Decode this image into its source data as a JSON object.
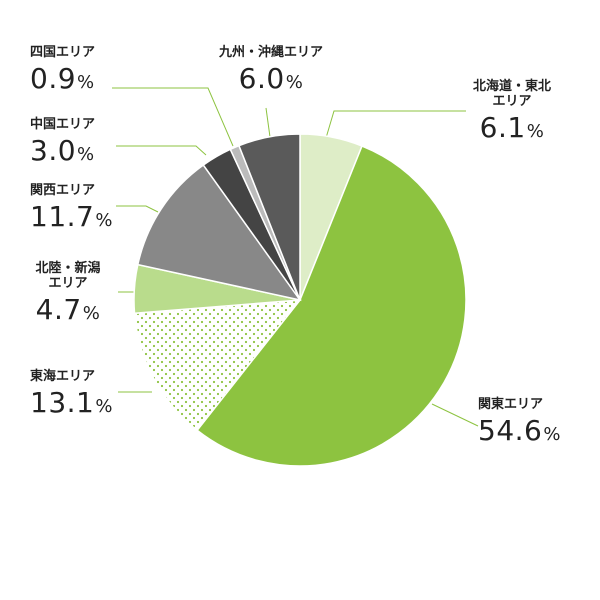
{
  "chart_data": {
    "type": "pie",
    "unit": "%",
    "start": "top",
    "direction": "clockwise",
    "slices": [
      {
        "name": "北海道・東北",
        "name_line2": "エリア",
        "value": 6.1,
        "value_label": "6.1",
        "color": "#deedc7",
        "pattern": "solid"
      },
      {
        "name": "関東エリア",
        "value": 54.6,
        "value_label": "54.6",
        "color": "#8dc340",
        "pattern": "solid"
      },
      {
        "name": "東海エリア",
        "value": 13.1,
        "value_label": "13.1",
        "color": "#8dc340",
        "pattern": "dots"
      },
      {
        "name": "北陸・新潟",
        "name_line2": "エリア",
        "value": 4.7,
        "value_label": "4.7",
        "color": "#b9dc8c",
        "pattern": "solid"
      },
      {
        "name": "関西エリア",
        "value": 11.7,
        "value_label": "11.7",
        "color": "#888888",
        "pattern": "solid"
      },
      {
        "name": "中国エリア",
        "value": 3.0,
        "value_label": "3.0",
        "color": "#444444",
        "pattern": "solid"
      },
      {
        "name": "四国エリア",
        "value": 0.9,
        "value_label": "0.9",
        "color": "#bbbbbb",
        "pattern": "solid"
      },
      {
        "name": "九州・沖縄エリア",
        "value": 6.0,
        "value_label": "6.0",
        "color": "#5a5a5a",
        "pattern": "solid"
      }
    ],
    "leader_color": "#8dc340"
  }
}
